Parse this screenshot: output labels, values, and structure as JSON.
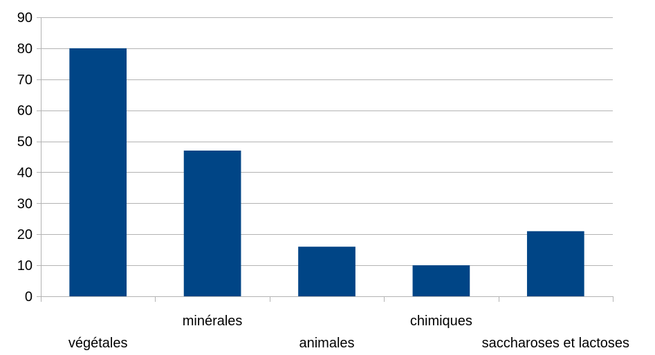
{
  "chart_data": {
    "type": "bar",
    "title": "",
    "xlabel": "",
    "ylabel": "",
    "categories": [
      "végétales",
      "minérales",
      "animales",
      "chimiques",
      "saccharoses et lactoses"
    ],
    "values": [
      80,
      47,
      16,
      10,
      21
    ],
    "ylim": [
      0,
      90
    ],
    "yticks": [
      0,
      10,
      20,
      30,
      40,
      50,
      60,
      70,
      80,
      90
    ],
    "grid": true,
    "legend": "none",
    "bar_color": "#004586",
    "grid_color": "#b3b3b3"
  }
}
